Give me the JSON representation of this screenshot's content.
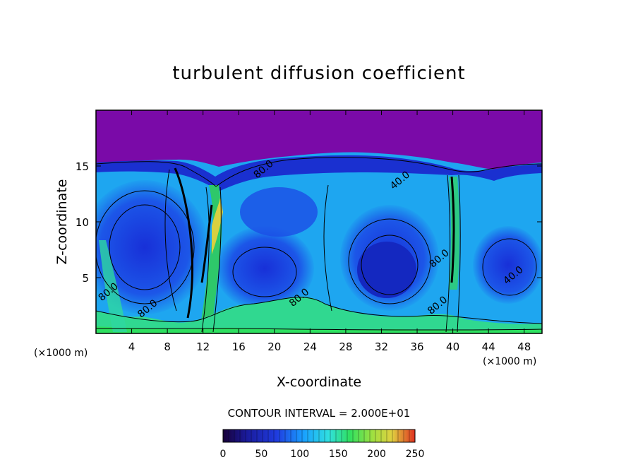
{
  "chart_data": {
    "type": "heatmap",
    "title": "turbulent diffusion coefficient",
    "xlabel": "X-coordinate",
    "ylabel": "Z-coordinate",
    "x_unit": "(×1000 m)",
    "x_unit_right": "(×1000 m)",
    "xlim": [
      0,
      50
    ],
    "ylim": [
      0,
      20
    ],
    "x_ticks": [
      4,
      8,
      12,
      16,
      20,
      24,
      28,
      32,
      36,
      40,
      44,
      48
    ],
    "y_ticks": [
      5,
      10,
      15
    ],
    "contour_interval_text": "CONTOUR INTERVAL = 2.000E+01",
    "colorbar": {
      "min": 0,
      "max": 250,
      "ticks": [
        0,
        50,
        100,
        150,
        200,
        250
      ]
    },
    "contour_labels": [
      {
        "text": "80.0",
        "x": 1.6,
        "y": 3.5
      },
      {
        "text": "80.0",
        "x": 6.0,
        "y": 2.0
      },
      {
        "text": "80.0",
        "x": 19.0,
        "y": 14.5
      },
      {
        "text": "40.0",
        "x": 34.3,
        "y": 13.5
      },
      {
        "text": "80.0",
        "x": 23.0,
        "y": 3.0
      },
      {
        "text": "80.0",
        "x": 38.7,
        "y": 6.5
      },
      {
        "text": "80.0",
        "x": 38.5,
        "y": 2.3
      },
      {
        "text": "40.0",
        "x": 47.0,
        "y": 5.0
      }
    ]
  }
}
